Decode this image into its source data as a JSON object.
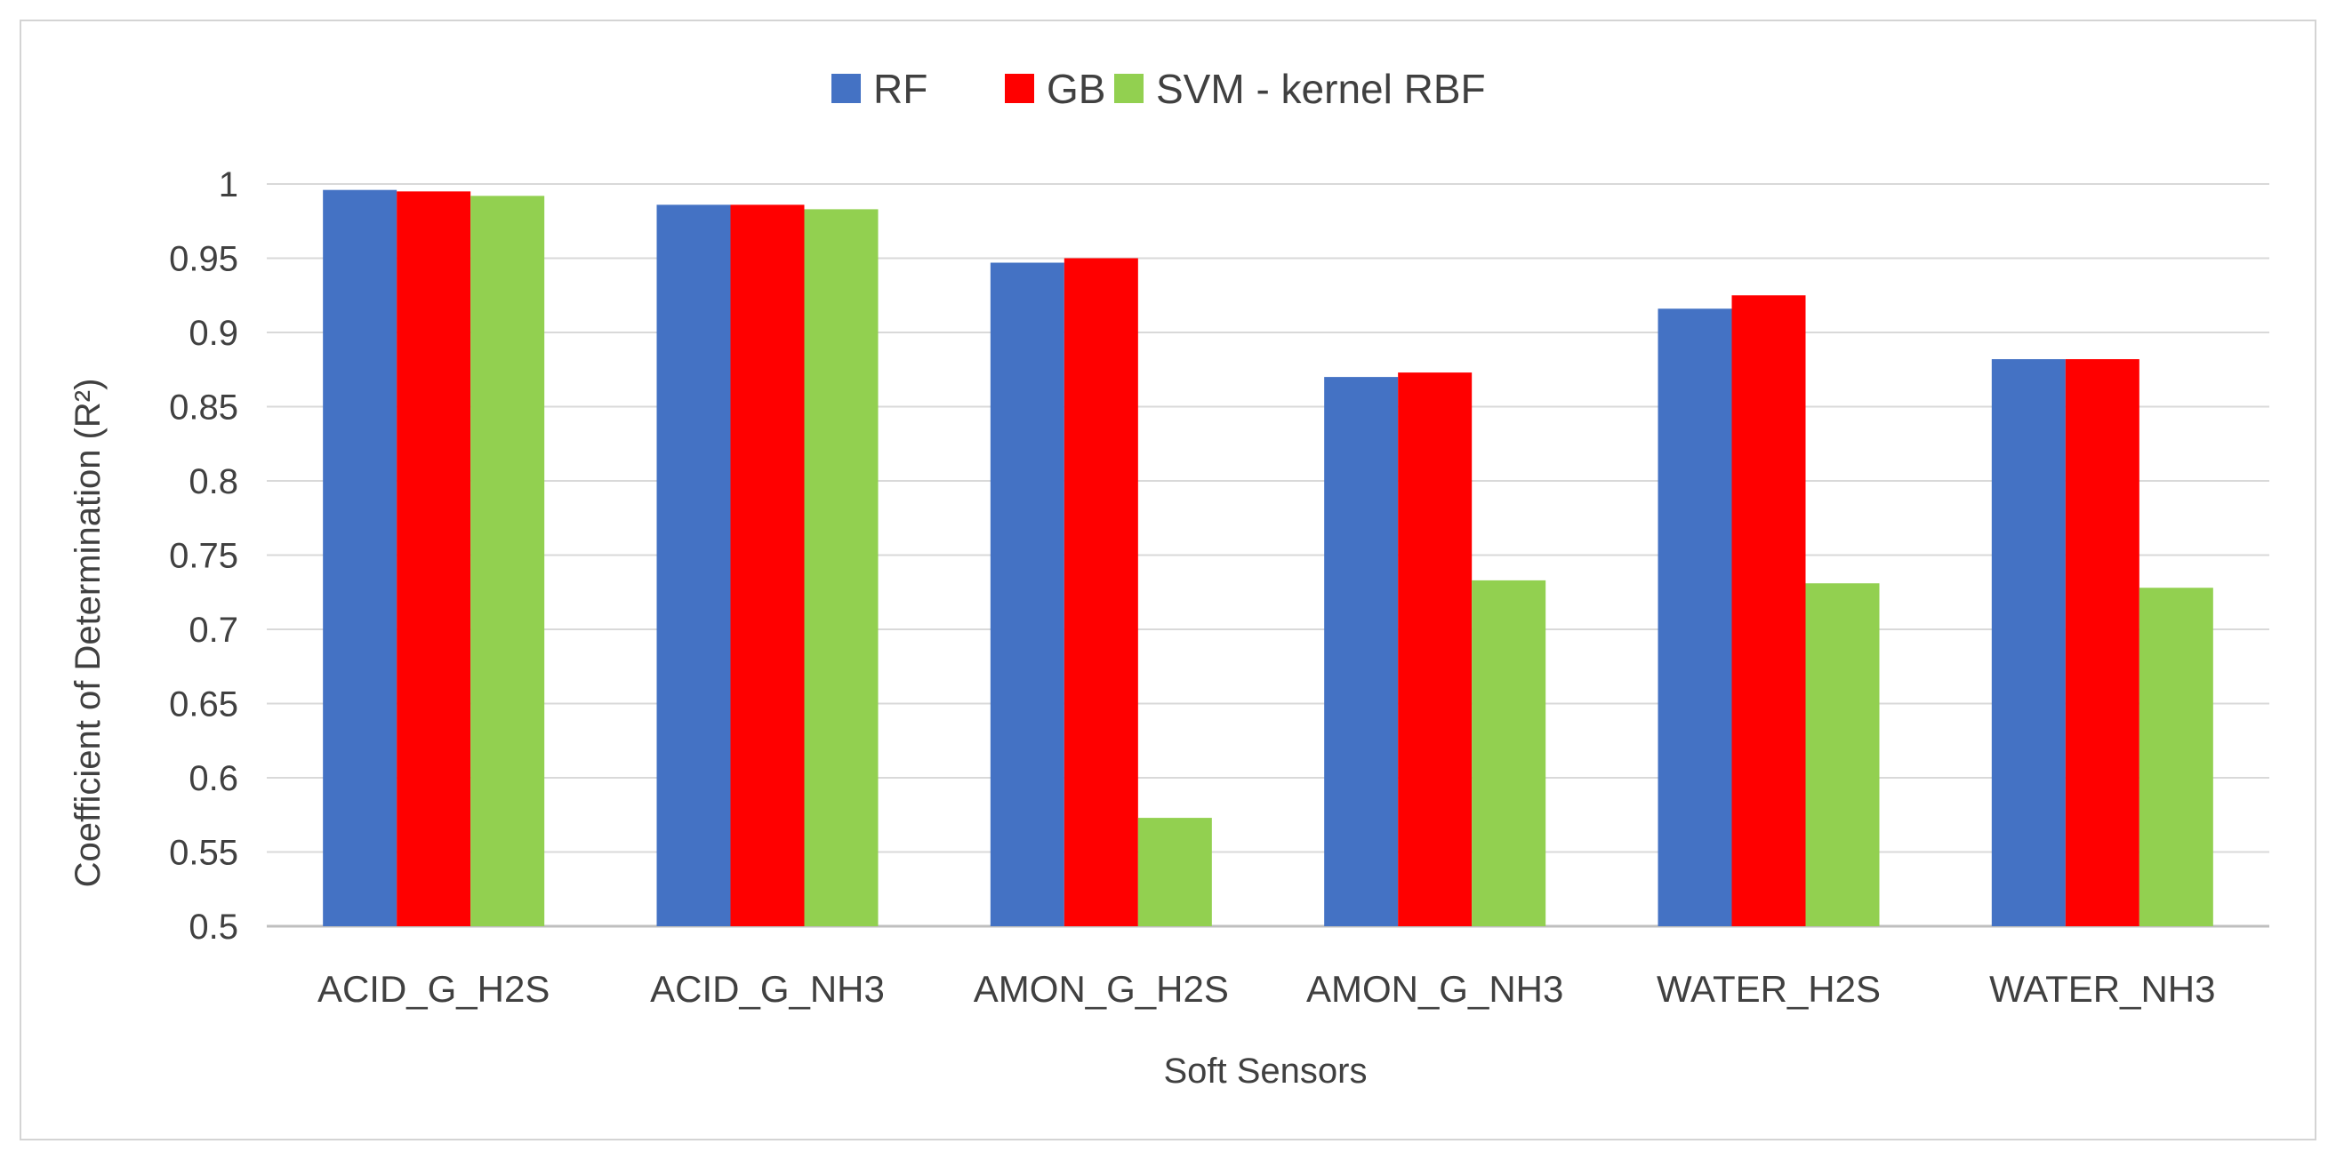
{
  "chart_data": {
    "type": "bar",
    "categories": [
      "ACID_G_H2S",
      "ACID_G_NH3",
      "AMON_G_H2S",
      "AMON_G_NH3",
      "WATER_H2S",
      "WATER_NH3"
    ],
    "series": [
      {
        "name": "RF",
        "color": "#4472c4",
        "values": [
          0.996,
          0.986,
          0.947,
          0.87,
          0.916,
          0.882
        ]
      },
      {
        "name": "GB",
        "color": "#ff0000",
        "values": [
          0.995,
          0.986,
          0.95,
          0.873,
          0.925,
          0.882
        ]
      },
      {
        "name": "SVM - kernel RBF",
        "color": "#92d050",
        "values": [
          0.992,
          0.983,
          0.573,
          0.733,
          0.731,
          0.728
        ]
      }
    ],
    "xlabel": "Soft Sensors",
    "ylabel": "Coefficient of Determination (R²)",
    "ylim": [
      0.5,
      1
    ],
    "yticks": [
      "0.5",
      "0.55",
      "0.6",
      "0.65",
      "0.7",
      "0.75",
      "0.8",
      "0.85",
      "0.9",
      "0.95",
      "1"
    ],
    "grid": true,
    "legend_position": "top-center"
  }
}
